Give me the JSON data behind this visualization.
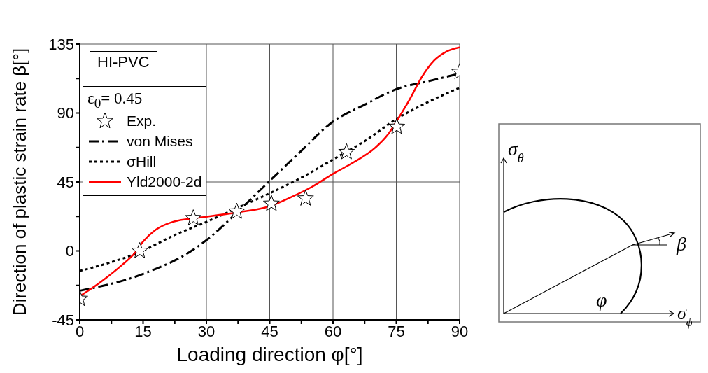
{
  "chart_data": {
    "type": "line",
    "xlabel": "Loading direction φ[°]",
    "ylabel": "Direction of plastic strain rate β[°]",
    "legend_title": "ε$_{0}$= 0.45",
    "annotations": [
      "HI-PVC",
      "σ$_{θ}$",
      "σ$_{ϕ}$",
      "β",
      "φ"
    ],
    "xlim": [
      0,
      90
    ],
    "xticks": [
      0,
      {
        "value": 7.5,
        "label": null
      },
      15,
      {
        "value": 22.5,
        "label": null
      },
      30,
      {
        "value": 37.5,
        "label": null
      },
      45,
      {
        "value": 52.5,
        "label": null
      },
      60,
      {
        "value": 67.5,
        "label": null
      },
      75,
      {
        "value": 82.5,
        "label": null
      },
      90
    ],
    "ylim": [
      -45,
      135
    ],
    "yticks": [
      -45,
      {
        "value": -22.5,
        "label": null
      },
      0,
      {
        "value": 22.5,
        "label": null
      },
      45,
      {
        "value": 67.5,
        "label": null
      },
      90,
      {
        "value": 112.5,
        "label": null
      },
      135
    ],
    "grid": true,
    "legend": "top left",
    "series": [
      {
        "name": "Exp.",
        "type": "scatter",
        "marker": "star",
        "color": "#000000",
        "x": [
          0,
          14.2,
          26.9,
          37.2,
          45.4,
          53.5,
          63.2,
          75.1,
          90
        ],
        "values": [
          -31.3,
          0,
          21.4,
          25.7,
          30.8,
          34.2,
          64.5,
          81,
          116.8
        ]
      },
      {
        "name": "von Mises",
        "line_style": "dashdot",
        "marker": "none",
        "color": "#000000",
        "x": [
          0,
          15,
          27,
          30,
          37.5,
          45,
          52,
          60,
          67.5,
          75,
          82.5,
          90
        ],
        "values": [
          -26,
          -15,
          1,
          7,
          25.7,
          45.7,
          64,
          84.4,
          95.4,
          105.6,
          110.7,
          115.8
        ]
      },
      {
        "name": "σHill",
        "line_style": "dotted",
        "marker": "none",
        "color": "#000000",
        "x": [
          0,
          15,
          22.5,
          30,
          37.5,
          45,
          52.5,
          60,
          67.5,
          75,
          82.5,
          90
        ],
        "values": [
          -13.1,
          0.2,
          10.4,
          18.9,
          28.2,
          37.6,
          47.8,
          59.7,
          71.6,
          86,
          97.1,
          106.5
        ]
      },
      {
        "name": "Yld2000-2d",
        "line_style": "solid",
        "marker": "none",
        "color": "#ff0000",
        "x": [
          0,
          5,
          10,
          13,
          15,
          18,
          22,
          26,
          30,
          37.5,
          45,
          50,
          55,
          60,
          65,
          70,
          73,
          75,
          78,
          81,
          84,
          87,
          90
        ],
        "values": [
          -29.6,
          -20.2,
          -9.2,
          -1.5,
          6.1,
          13.8,
          18.9,
          20.9,
          22.3,
          25.2,
          29.1,
          35,
          41.8,
          50.3,
          58,
          67.3,
          75.9,
          84.4,
          98,
          113.3,
          124.4,
          130.3,
          132.9
        ]
      }
    ]
  }
}
